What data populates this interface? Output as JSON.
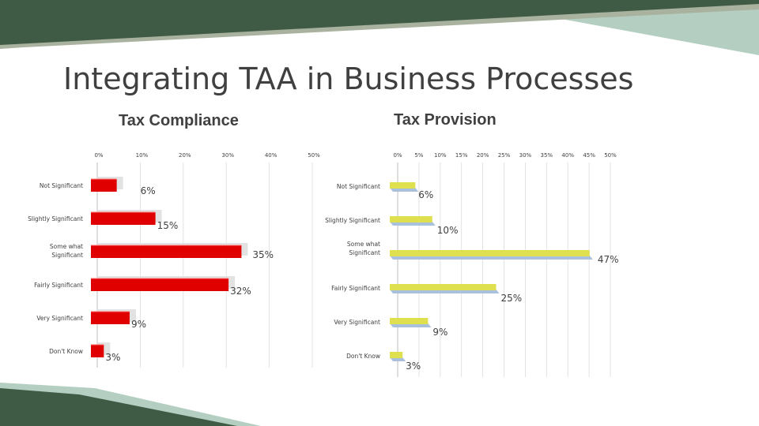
{
  "slide": {
    "title": "Integrating TAA in Business Processes"
  },
  "colors": {
    "background": "#ffffff",
    "title_text": "#404040",
    "deco_dark_green": "#3f5b45",
    "deco_light_green": "#b4cfc1",
    "deco_sage": "#a9b29e",
    "left_bar": "#e00000",
    "left_bar_shadow": "#e2e2e2",
    "right_bar_top": "#dfe050",
    "right_bar_bottom": "#a9c1dd"
  },
  "chart_data": [
    {
      "type": "bar",
      "orientation": "horizontal",
      "title": "Tax Compliance",
      "categories": [
        "Not Significant",
        "Slightly Significant",
        "Some what Significant",
        "Fairly Significant",
        "Very Significant",
        "Don't Know"
      ],
      "values": [
        6,
        15,
        35,
        32,
        9,
        3
      ],
      "data_labels": [
        "6%",
        "15%",
        "35%",
        "32%",
        "9%",
        "3%"
      ],
      "xlim": [
        0,
        50
      ],
      "ticks": [
        0,
        10,
        20,
        30,
        40,
        50
      ],
      "tick_labels": [
        "0%",
        "10%",
        "20%",
        "30%",
        "40%",
        "50%"
      ],
      "axis_position": "top",
      "grid": true
    },
    {
      "type": "bar",
      "orientation": "horizontal",
      "title": "Tax Provision",
      "categories": [
        "Not Significant",
        "Slightly Significant",
        "Some what Significant",
        "Fairly Significant",
        "Very Significant",
        "Don't Know"
      ],
      "values": [
        6,
        10,
        47,
        25,
        9,
        3
      ],
      "data_labels": [
        "6%",
        "10%",
        "47%",
        "25%",
        "9%",
        "3%"
      ],
      "xlim": [
        0,
        50
      ],
      "ticks": [
        0,
        5,
        10,
        15,
        20,
        25,
        30,
        35,
        40,
        45,
        50
      ],
      "tick_labels": [
        "0%",
        "5%",
        "10%",
        "15%",
        "20%",
        "25%",
        "30%",
        "35%",
        "40%",
        "45%",
        "50%"
      ],
      "axis_position": "top",
      "grid": true
    }
  ]
}
